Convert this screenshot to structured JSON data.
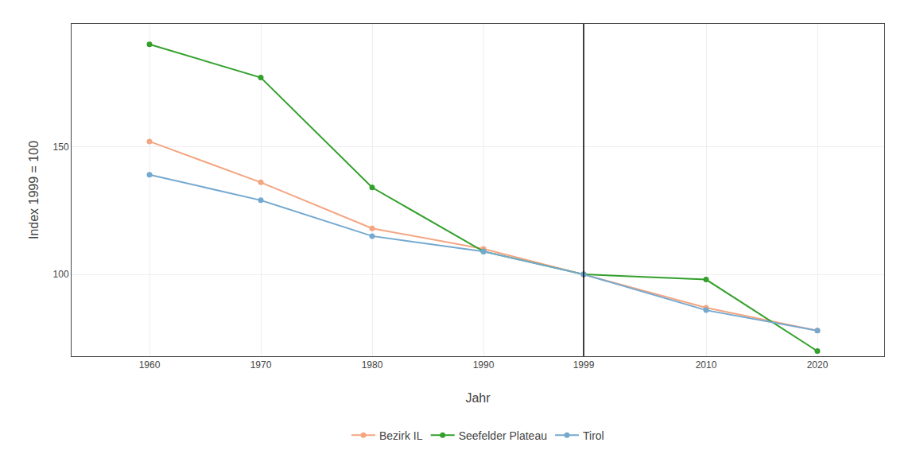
{
  "chart_data": {
    "type": "line",
    "x": [
      1960,
      1970,
      1980,
      1990,
      1999,
      2010,
      2020
    ],
    "series": [
      {
        "name": "Bezirk IL",
        "color": "#F4A582",
        "values": [
          152,
          136,
          118,
          110,
          100,
          87,
          78
        ]
      },
      {
        "name": "Seefelder Plateau",
        "color": "#33A02C",
        "values": [
          190,
          177,
          134,
          109,
          100,
          98,
          70
        ]
      },
      {
        "name": "Tirol",
        "color": "#74A9CF",
        "values": [
          139,
          129,
          115,
          109,
          100,
          86,
          78
        ]
      }
    ],
    "xlabel": "Jahr",
    "ylabel": "Index 1999 = 100",
    "xlim": [
      1953,
      2026
    ],
    "xticks": [
      1960,
      1970,
      1980,
      1990,
      1999,
      2010,
      2020
    ],
    "ylim": [
      68,
      198
    ],
    "yticks": [
      100,
      150
    ],
    "vline_x": 1999,
    "grid": true,
    "legend": "bottom",
    "marker": "circle"
  }
}
